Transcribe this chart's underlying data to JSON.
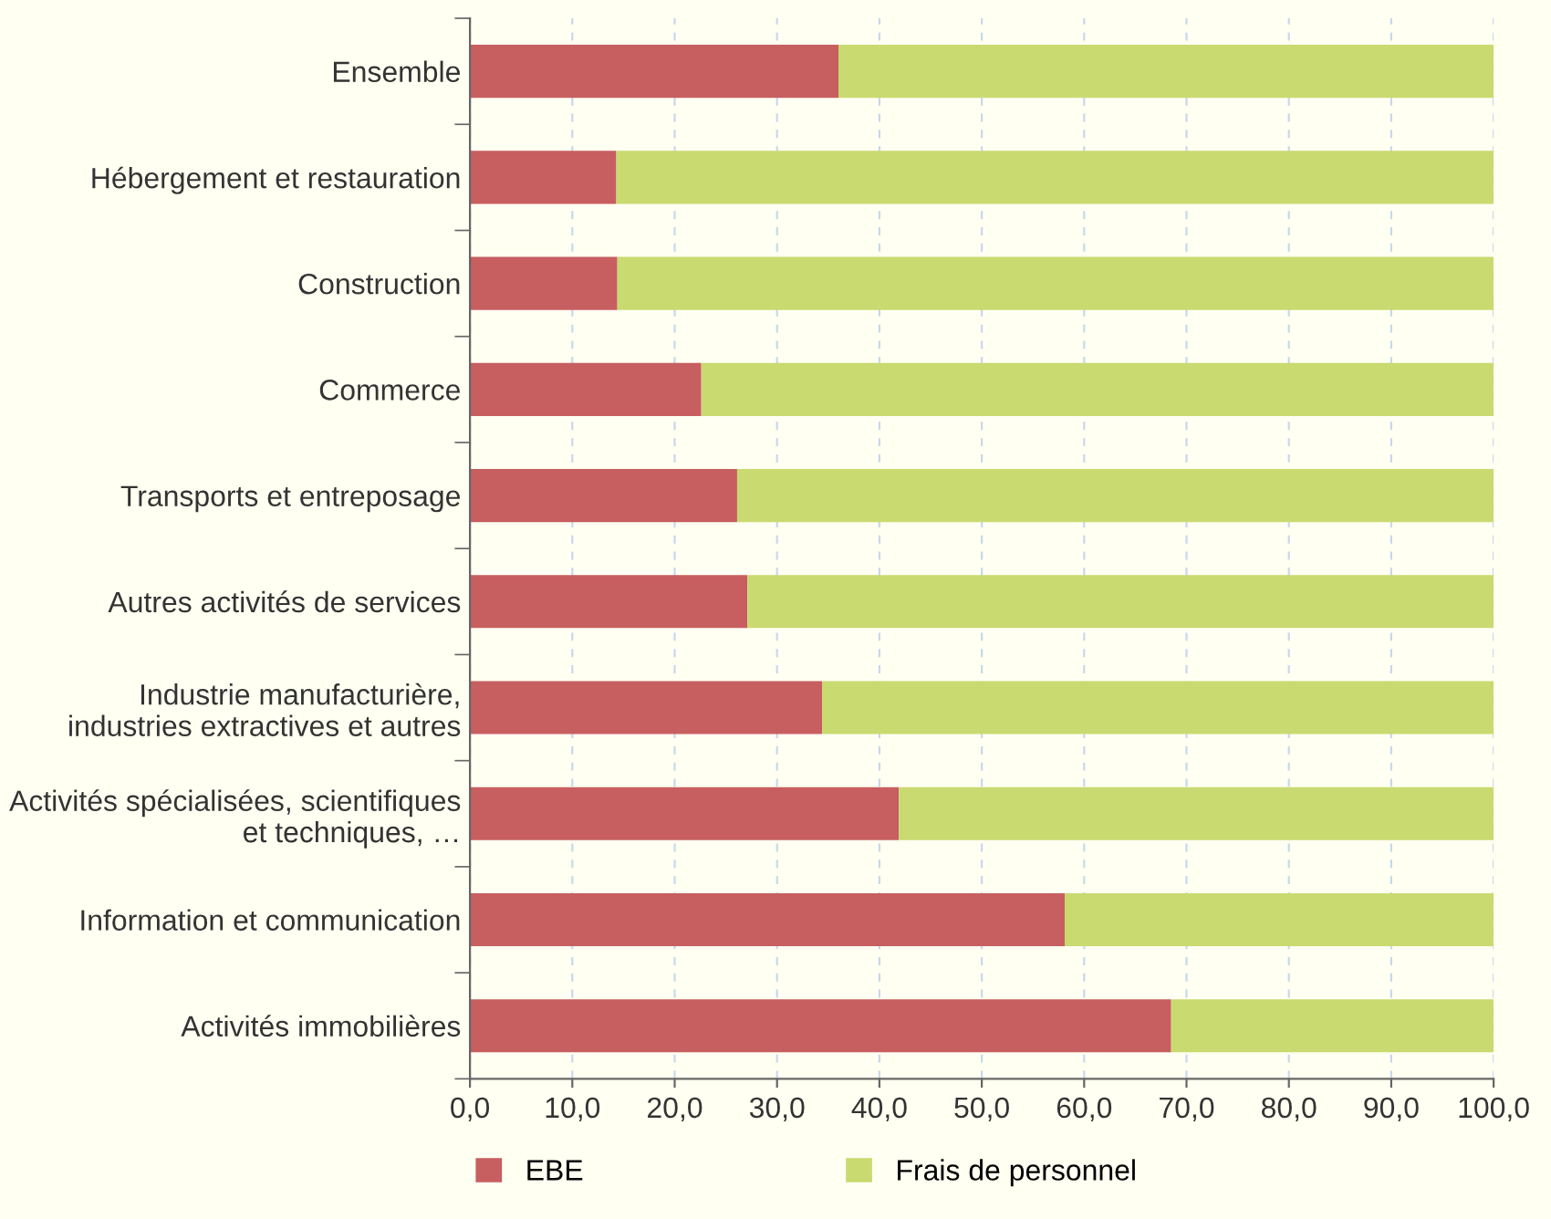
{
  "chart_data": {
    "type": "bar",
    "orientation": "horizontal",
    "stacked": true,
    "categories": [
      "Ensemble",
      "Hébergement et restauration",
      "Construction",
      "Commerce",
      "Transports et entreposage",
      "Autres activités de services",
      "Industrie manufacturière,\nindustries extractives et autres",
      "Activités spécialisées, scientifiques\net techniques, …",
      "Information et communication",
      "Activités immobilières"
    ],
    "series": [
      {
        "name": "EBE",
        "color": "#c75e60",
        "values": [
          36.0,
          14.3,
          14.4,
          22.6,
          26.1,
          27.1,
          34.4,
          41.9,
          58.1,
          68.5
        ]
      },
      {
        "name": "Frais de personnel",
        "color": "#c9da70",
        "values": [
          64.0,
          85.7,
          85.6,
          77.4,
          73.9,
          72.9,
          65.6,
          58.1,
          41.9,
          31.5
        ]
      }
    ],
    "xlim": [
      0,
      100
    ],
    "xticks": [
      {
        "value": 0,
        "label": "0,0"
      },
      {
        "value": 10,
        "label": "10,0"
      },
      {
        "value": 20,
        "label": "20,0"
      },
      {
        "value": 30,
        "label": "30,0"
      },
      {
        "value": 40,
        "label": "40,0"
      },
      {
        "value": 50,
        "label": "50,0"
      },
      {
        "value": 60,
        "label": "60,0"
      },
      {
        "value": 70,
        "label": "70,0"
      },
      {
        "value": 80,
        "label": "80,0"
      },
      {
        "value": 90,
        "label": "90,0"
      },
      {
        "value": 100,
        "label": "100,0"
      }
    ],
    "grid": "x",
    "legend": "bottom"
  }
}
